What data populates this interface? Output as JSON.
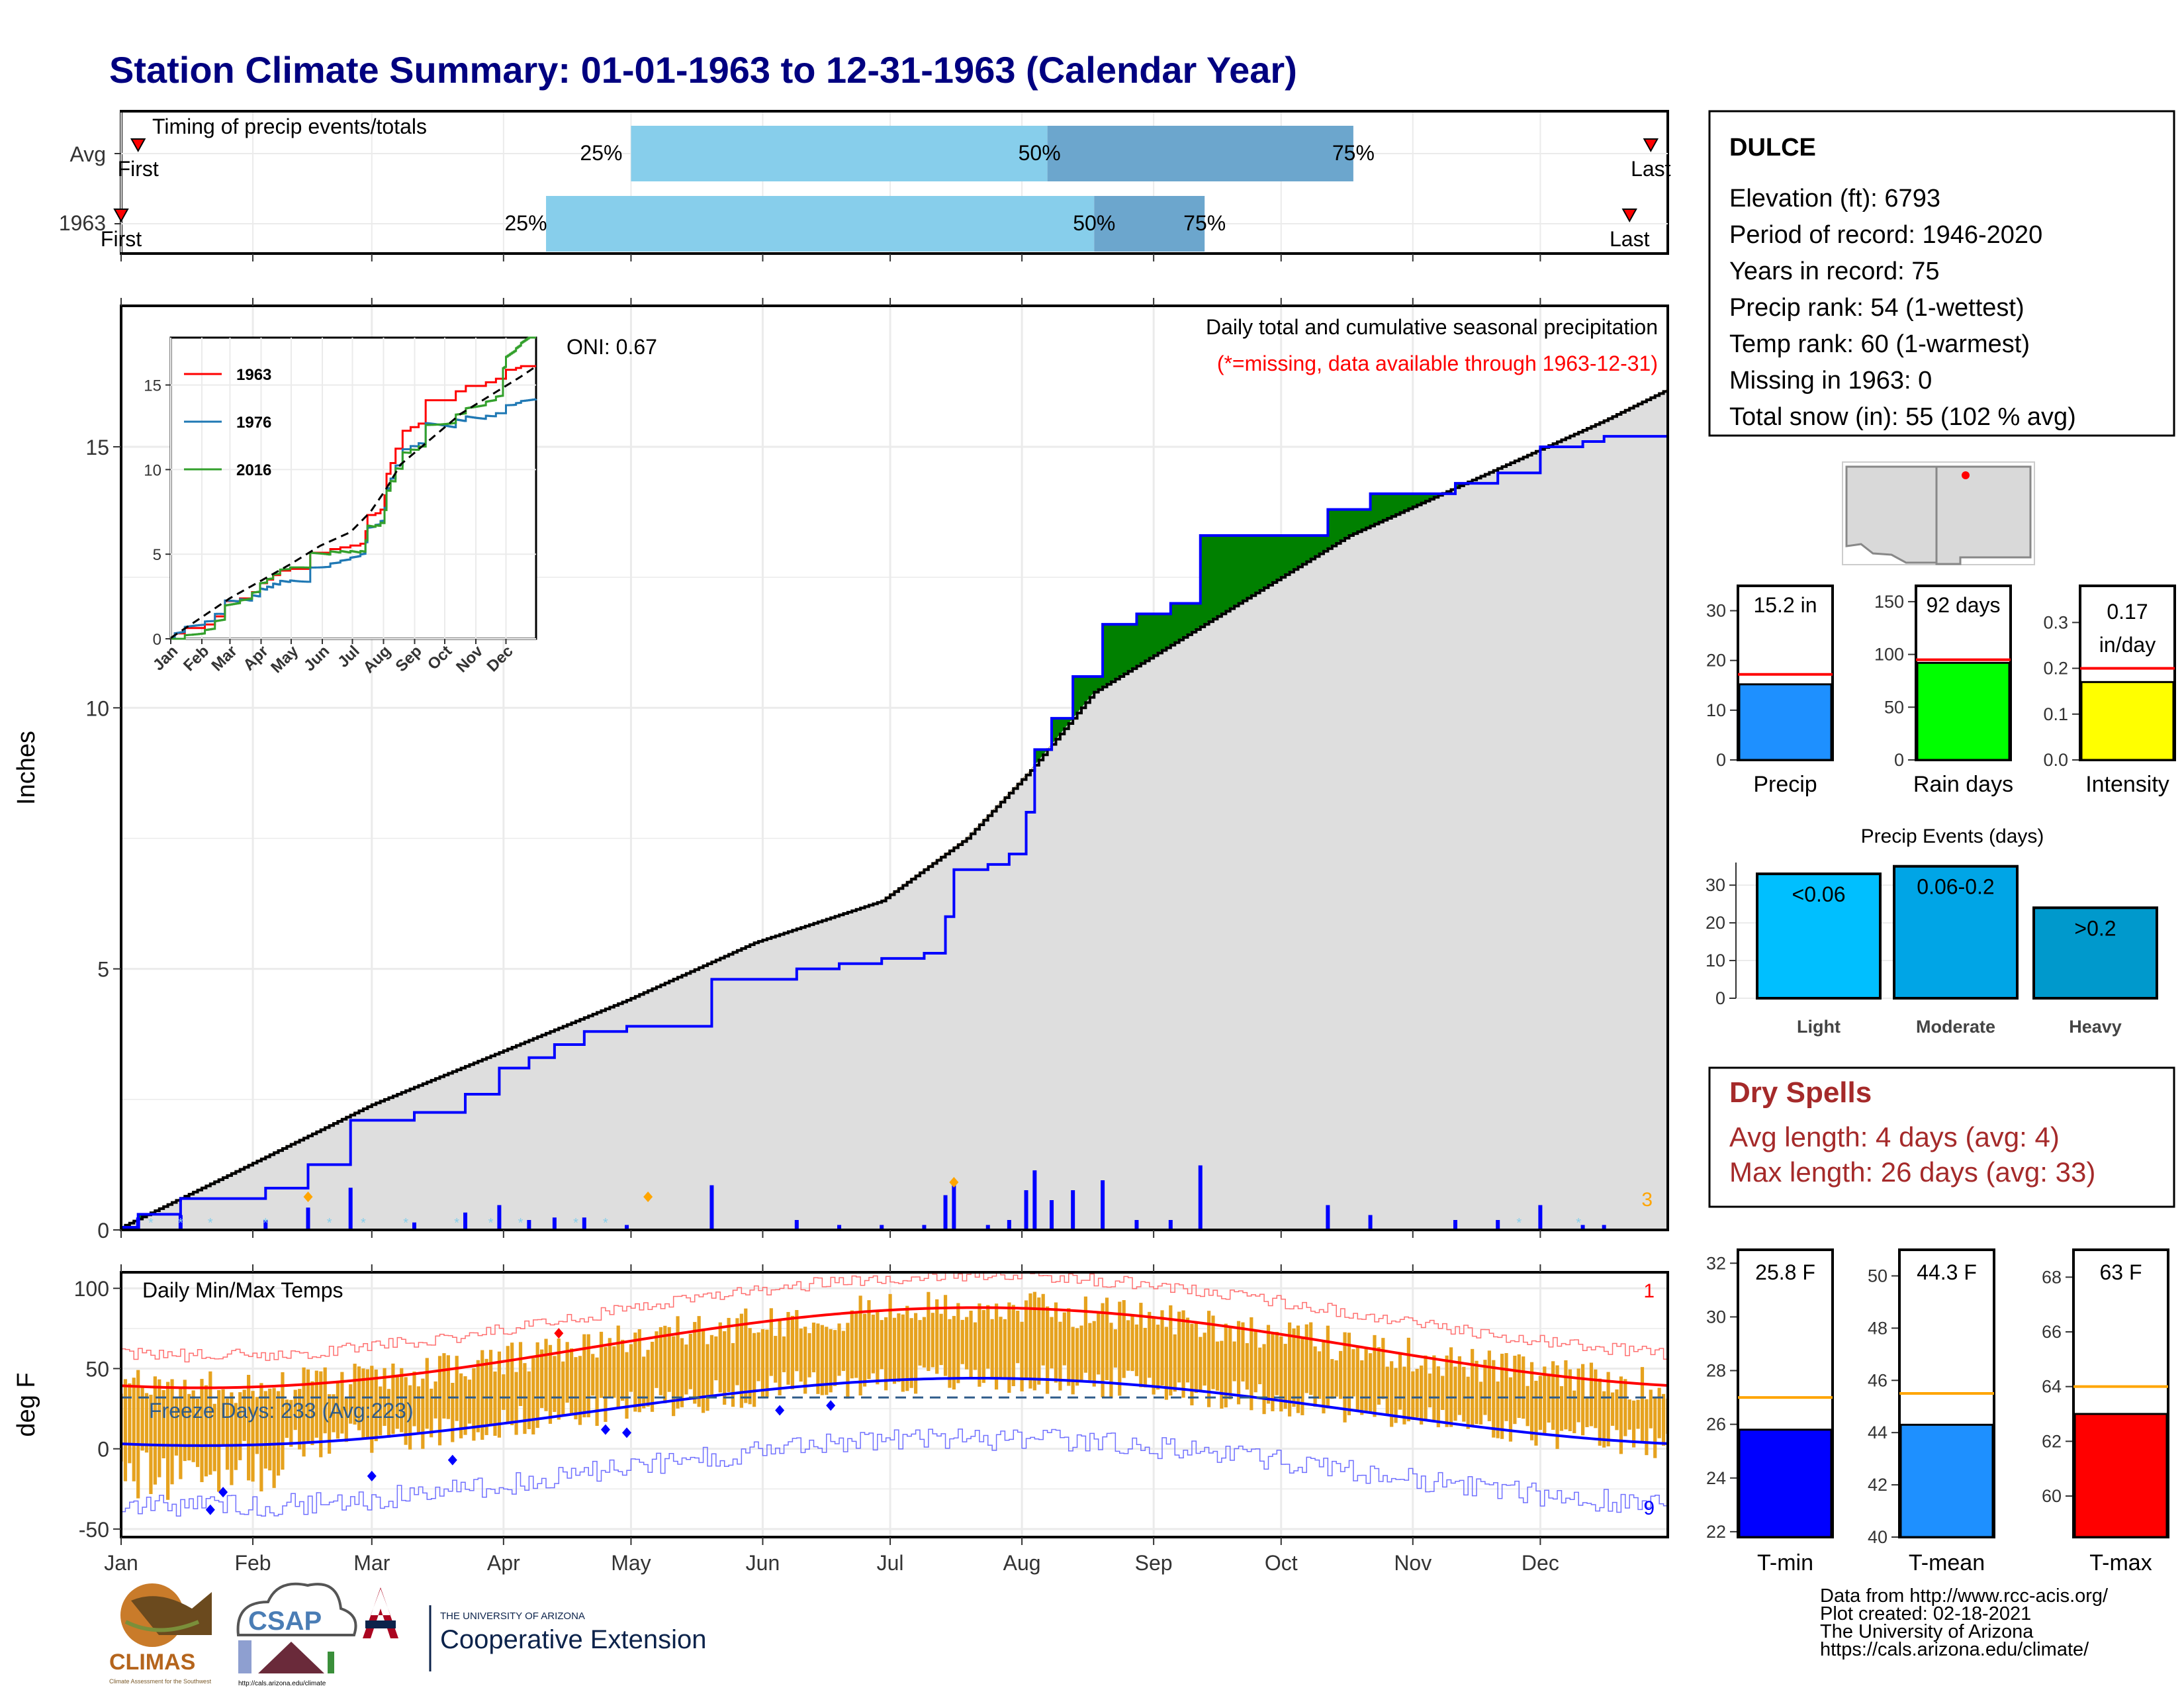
{
  "title": "Station Climate Summary: 01-01-1963 to 12-31-1963 (Calendar Year)",
  "colors": {
    "title": "#000080",
    "brown": "#8B5A00",
    "green": "#008000",
    "blue": "#0000FF",
    "gray_fill": "#DEDEDE",
    "light_blue": "#87CEEB",
    "mid_blue": "#6CA6CD",
    "orange": "#E6A21E",
    "red": "#FF0000",
    "dryspell": "#A52A2A"
  },
  "months": [
    "Jan",
    "Feb",
    "Mar",
    "Apr",
    "May",
    "Jun",
    "Jul",
    "Aug",
    "Sep",
    "Oct",
    "Nov",
    "Dec"
  ],
  "timing_panel": {
    "title": "Timing of precip events/totals",
    "rows": [
      {
        "label": "Avg",
        "first_label": "First",
        "last_label": "Last",
        "first_day": 5,
        "p25_day": 121,
        "p50_day": 219,
        "p75_day": 291,
        "last_day": 361,
        "q25": "25%",
        "q50": "50%",
        "q75": "75%"
      },
      {
        "label": "1963",
        "first_label": "First",
        "last_label": "Last",
        "first_day": 1,
        "p25_day": 101,
        "p50_day": 230,
        "p75_day": 256,
        "last_day": 356,
        "q25": "25%",
        "q50": "50%",
        "q75": "75%"
      }
    ]
  },
  "precip_panel": {
    "title": "Daily total and cumulative seasonal precipitation",
    "missing_note": "(*=missing, data available through 1963-12-31)",
    "ylabel": "Inches",
    "ylim": [
      0,
      17.7
    ],
    "yticks": [
      "0",
      "5",
      "10",
      "15"
    ],
    "oni": "ONI: 0.67",
    "corner_count": "3",
    "inset": {
      "legend": [
        "1963",
        "1976",
        "2016"
      ],
      "legend_colors": [
        "#FF0000",
        "#1F78B4",
        "#33A02C"
      ],
      "yticks": [
        "0",
        "5",
        "10",
        "15"
      ],
      "months": [
        "Jan",
        "Feb",
        "Mar",
        "Apr",
        "May",
        "Jun",
        "Jul",
        "Aug",
        "Sep",
        "Oct",
        "Nov",
        "Dec"
      ]
    }
  },
  "temp_panel": {
    "title": "Daily Min/Max Temps",
    "ylabel": "deg F",
    "ylim": [
      -55,
      110
    ],
    "yticks": [
      "-50",
      "0",
      "50",
      "100"
    ],
    "freeze_text": "Freeze Days: 233 (Avg:223)",
    "count_max": "1",
    "count_min": "9"
  },
  "station_box": {
    "name": "DULCE",
    "lines": [
      "Elevation (ft): 6793",
      "Period of record: 1946-2020",
      "Years in record: 75",
      "Precip rank: 54 (1-wettest)",
      "Temp rank: 60 (1-warmest)",
      "Missing in 1963: 0",
      "Total snow (in): 55 (102 % avg)"
    ]
  },
  "summary_bars": [
    {
      "label": "Precip",
      "value_text": "15.2 in",
      "value": 15.2,
      "avg": 17.2,
      "max": 35,
      "yticks": [
        "0",
        "10",
        "20",
        "30"
      ],
      "color": "#1E90FF"
    },
    {
      "label": "Rain days",
      "value_text": "92 days",
      "value": 92,
      "avg": 95,
      "max": 165,
      "yticks": [
        "0",
        "50",
        "100",
        "150"
      ],
      "color": "#00FF00"
    },
    {
      "label": "Intensity",
      "value_text": "0.17 in/day",
      "value": 0.17,
      "avg": 0.2,
      "max": 0.38,
      "yticks": [
        "0.0",
        "0.1",
        "0.2",
        "0.3"
      ],
      "color": "#FFFF00"
    }
  ],
  "precip_events": {
    "title": "Precip Events (days)",
    "yticks": [
      "0",
      "10",
      "20",
      "30"
    ],
    "categories": [
      "Light",
      "Moderate",
      "Heavy"
    ],
    "ranges": [
      "<0.06",
      "0.06-0.2",
      ">0.2"
    ],
    "values": [
      33,
      35,
      24
    ],
    "colors": [
      "#00BFFF",
      "#00A5E6",
      "#0099CC"
    ]
  },
  "dry_spells": {
    "title": "Dry Spells",
    "avg_line": "Avg length: 4 days (avg: 4)",
    "max_line": "Max length: 26 days (avg: 33)"
  },
  "temp_summary": [
    {
      "label": "T-min",
      "value_text": "25.8 F",
      "value": 25.8,
      "avg": 27,
      "ymin": 21.8,
      "ymax": 32.5,
      "yticks": [
        "22",
        "24",
        "26",
        "28",
        "30",
        "32"
      ],
      "color": "#0000FF"
    },
    {
      "label": "T-mean",
      "value_text": "44.3 F",
      "value": 44.3,
      "avg": 45.5,
      "ymin": 40,
      "ymax": 51,
      "yticks": [
        "40",
        "42",
        "44",
        "46",
        "48",
        "50"
      ],
      "color": "#1E90FF"
    },
    {
      "label": "T-max",
      "value_text": "63 F",
      "value": 63,
      "avg": 64,
      "ymin": 58.5,
      "ymax": 69,
      "yticks": [
        "60",
        "62",
        "64",
        "66",
        "68"
      ],
      "color": "#FF0000"
    }
  ],
  "credits": [
    "Data from http://www.rcc-acis.org/",
    "Plot created: 02-18-2021",
    "The University of Arizona",
    "https://cals.arizona.edu/climate/"
  ],
  "logos": {
    "climas": "CLIMAS",
    "climas_sub": "Climate Assessment for the Southwest",
    "csap": "CSAP",
    "csap_url": "http://cals.arizona.edu/climate",
    "ua_line1": "THE UNIVERSITY OF ARIZONA",
    "ua_line2": "Cooperative Extension"
  },
  "chart_data": [
    {
      "type": "area",
      "title": "Daily total and cumulative seasonal precipitation",
      "ylabel": "Inches",
      "ylim": [
        0,
        17.7
      ],
      "x_unit": "day of year",
      "series": [
        {
          "name": "1963",
          "x": [
            1,
            5,
            15,
            35,
            45,
            55,
            70,
            82,
            90,
            97,
            103,
            110,
            120,
            130,
            140,
            150,
            160,
            170,
            180,
            190,
            195,
            197,
            205,
            210,
            214,
            216,
            220,
            225,
            232,
            240,
            248,
            255,
            265,
            275,
            285,
            295,
            305,
            315,
            325,
            335,
            345,
            350,
            365
          ],
          "y": [
            0.05,
            0.3,
            0.6,
            0.8,
            1.25,
            2.1,
            2.25,
            2.6,
            3.1,
            3.3,
            3.55,
            3.8,
            3.9,
            3.9,
            4.8,
            4.8,
            5.0,
            5.1,
            5.2,
            5.3,
            6.0,
            6.9,
            7.0,
            7.2,
            8.0,
            9.2,
            9.8,
            10.6,
            11.6,
            11.8,
            12.0,
            13.3,
            13.3,
            13.3,
            13.8,
            14.1,
            14.1,
            14.3,
            14.5,
            15.0,
            15.1,
            15.2,
            15.2
          ]
        },
        {
          "name": "Avg",
          "x": [
            1,
            30,
            60,
            90,
            120,
            150,
            180,
            200,
            215,
            230,
            260,
            290,
            320,
            350,
            365
          ],
          "y": [
            0.05,
            1.2,
            2.4,
            3.4,
            4.4,
            5.5,
            6.3,
            7.5,
            8.8,
            10.3,
            11.8,
            13.3,
            14.4,
            15.5,
            16.1
          ]
        }
      ]
    },
    {
      "type": "bar",
      "title": "Precip Events (days)",
      "categories": [
        "Light",
        "Moderate",
        "Heavy"
      ],
      "values": [
        33,
        35,
        24
      ]
    },
    {
      "type": "bar",
      "categories": [
        "Precip",
        "Rain days",
        "Intensity"
      ],
      "values": [
        15.2,
        92,
        0.17
      ]
    },
    {
      "type": "bar",
      "categories": [
        "T-min",
        "T-mean",
        "T-max"
      ],
      "values": [
        25.8,
        44.3,
        63
      ]
    }
  ]
}
